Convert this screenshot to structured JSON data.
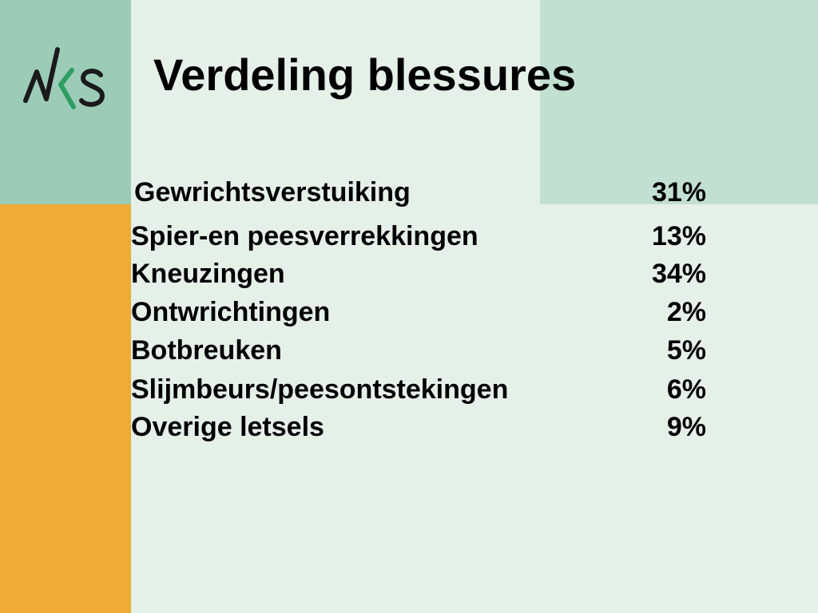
{
  "slide": {
    "title": "Verdeling blessures",
    "logo": {
      "icon": "nks-logo-icon",
      "text": "NKS",
      "color_dark": "#1a1a1a",
      "color_accent": "#2f9e63"
    },
    "colors": {
      "background": "#e5f0e9",
      "green_left": "#9ccbb7",
      "orange_left": "#eeab35",
      "green_right": "#c2e0d1"
    },
    "injuries": [
      {
        "label": "Gewrichtsverstuiking",
        "percent": "31%"
      },
      {
        "label": "Spier-en peesverrekkingen",
        "percent": "13%"
      },
      {
        "label": "Kneuzingen",
        "percent": "34%"
      },
      {
        "label": "Ontwrichtingen",
        "percent": "2%"
      },
      {
        "label": "Botbreuken",
        "percent": "5%"
      },
      {
        "label": "Slijmbeurs/peesontstekingen",
        "percent": "6%"
      },
      {
        "label": "Overige letsels",
        "percent": "9%"
      }
    ]
  }
}
